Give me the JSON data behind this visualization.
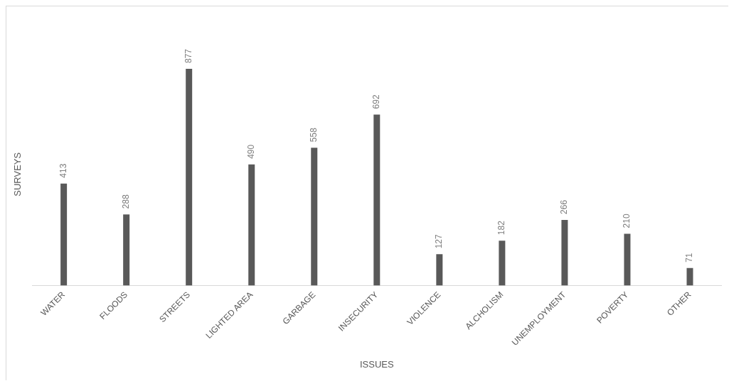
{
  "chart_data": {
    "type": "bar",
    "xlabel": "ISSUES",
    "ylabel": "SURVEYS",
    "categories": [
      "WATER",
      "FLOODS",
      "STREETS",
      "LIGHTED AREA",
      "GARBAGE",
      "INSECURITY",
      "VIOLENCE",
      "ALCHOLISM",
      "UNEMPLOYMENT",
      "POVERTY",
      "OTHER"
    ],
    "values": [
      413,
      288,
      877,
      490,
      558,
      692,
      127,
      182,
      266,
      210,
      71
    ],
    "color": "#595959",
    "data_labels": true,
    "grid": false,
    "legend": false
  }
}
